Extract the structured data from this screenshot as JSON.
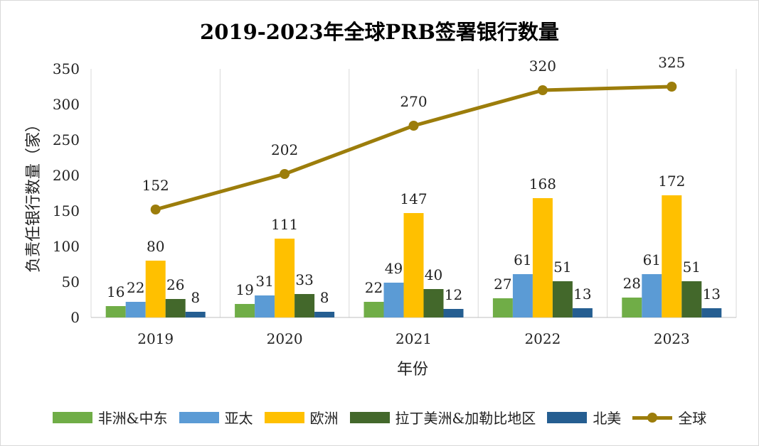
{
  "chart_data": {
    "type": "bar",
    "title": "2019-2023年全球PRB签署银行数量",
    "xlabel": "年份",
    "ylabel": "负责任银行数量（家）",
    "categories": [
      "2019",
      "2020",
      "2021",
      "2022",
      "2023"
    ],
    "ylim": [
      0,
      350
    ],
    "yticks": [
      0,
      50,
      100,
      150,
      200,
      250,
      300,
      350
    ],
    "grid": "vertical",
    "legend_position": "bottom",
    "series": [
      {
        "name": "非洲&中东",
        "type": "bar",
        "color": "#70ad47",
        "values": [
          16,
          19,
          22,
          27,
          28
        ]
      },
      {
        "name": "亚太",
        "type": "bar",
        "color": "#5b9bd5",
        "values": [
          22,
          31,
          49,
          61,
          61
        ]
      },
      {
        "name": "欧洲",
        "type": "bar",
        "color": "#ffc000",
        "values": [
          80,
          111,
          147,
          168,
          172
        ]
      },
      {
        "name": "拉丁美洲&加勒比地区",
        "type": "bar",
        "color": "#43682b",
        "values": [
          26,
          33,
          40,
          51,
          51
        ]
      },
      {
        "name": "北美",
        "type": "bar",
        "color": "#255e91",
        "values": [
          8,
          8,
          12,
          13,
          13
        ]
      },
      {
        "name": "全球",
        "type": "line",
        "color": "#9c7d0b",
        "values": [
          152,
          202,
          270,
          320,
          325
        ]
      }
    ]
  }
}
